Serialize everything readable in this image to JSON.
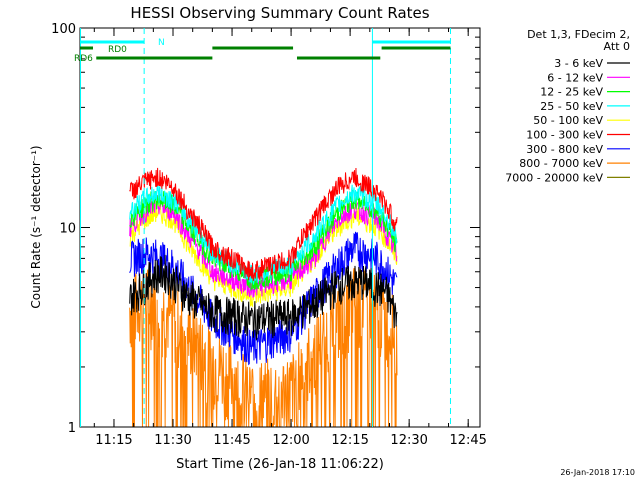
{
  "chart_data": {
    "type": "line",
    "title": "HESSI Observing Summary Count Rates",
    "xlabel": "Start Time (26-Jan-18 11:06:22)",
    "ylabel": "Count Rate (s⁻¹ detector⁻¹)",
    "y_scale": "log",
    "ylim": [
      1,
      100
    ],
    "xlim": [
      "11:06:22",
      "12:48:00"
    ],
    "x_ticks": [
      "11:15",
      "11:30",
      "11:45",
      "12:00",
      "12:15",
      "12:30",
      "12:45"
    ],
    "y_ticks": [
      "1",
      "10",
      "100"
    ],
    "grid": false,
    "legend_position": "right",
    "legend_header": [
      "Det 1,3, FDecim 2,",
      "Att 0"
    ],
    "date_stamp": "26-Jan-2018 17:10",
    "series": [
      {
        "name": "3 - 6 keV",
        "color": "#000000",
        "x": [
          "11:19",
          "11:22",
          "11:25",
          "11:28",
          "11:31",
          "11:34",
          "11:40",
          "11:50",
          "12:00",
          "12:06",
          "12:12",
          "12:18",
          "12:24",
          "12:27"
        ],
        "values": [
          4.5,
          5.0,
          5.8,
          6.0,
          5.2,
          4.5,
          3.8,
          3.5,
          3.6,
          4.2,
          5.2,
          5.4,
          4.8,
          3.5
        ]
      },
      {
        "name": "6 - 12 keV",
        "color": "#ff00ff",
        "x": [
          "11:19",
          "11:23",
          "11:26",
          "11:30",
          "11:34",
          "11:40",
          "11:50",
          "12:00",
          "12:06",
          "12:12",
          "12:16",
          "12:22",
          "12:27"
        ],
        "values": [
          10,
          12,
          13,
          12,
          9,
          6,
          5.0,
          5.5,
          7,
          11,
          12.5,
          11,
          7
        ]
      },
      {
        "name": "12 - 25 keV",
        "color": "#00ff00",
        "x": [
          "11:19",
          "11:23",
          "11:26",
          "11:30",
          "11:34",
          "11:40",
          "11:50",
          "12:00",
          "12:06",
          "12:12",
          "12:16",
          "12:22",
          "12:27"
        ],
        "values": [
          11,
          13,
          14,
          13,
          10,
          7,
          5.5,
          6,
          8,
          12,
          14,
          12,
          8
        ]
      },
      {
        "name": "25 - 50 keV",
        "color": "#00ffff",
        "x": [
          "11:19",
          "11:23",
          "11:26",
          "11:30",
          "11:34",
          "11:40",
          "11:50",
          "12:00",
          "12:06",
          "12:12",
          "12:16",
          "12:22",
          "12:27"
        ],
        "values": [
          12,
          14,
          15,
          14,
          11,
          7.5,
          5.8,
          6.5,
          9,
          13,
          15,
          13,
          9
        ]
      },
      {
        "name": "50 - 100 keV",
        "color": "#ffff00",
        "x": [
          "11:19",
          "11:23",
          "11:26",
          "11:30",
          "11:34",
          "11:40",
          "11:50",
          "12:00",
          "12:06",
          "12:12",
          "12:16",
          "12:22",
          "12:27"
        ],
        "values": [
          9,
          11,
          12,
          11,
          8,
          5.5,
          4.5,
          5,
          7,
          10,
          11.5,
          10,
          7
        ]
      },
      {
        "name": "100 - 300 keV",
        "color": "#ff0000",
        "x": [
          "11:19",
          "11:23",
          "11:26",
          "11:30",
          "11:34",
          "11:40",
          "11:50",
          "12:00",
          "12:06",
          "12:12",
          "12:16",
          "12:22",
          "12:27"
        ],
        "values": [
          15,
          17,
          18,
          16,
          12,
          8,
          6,
          7,
          11,
          16,
          18,
          15,
          10
        ]
      },
      {
        "name": "300 - 800 keV",
        "color": "#0000ff",
        "x": [
          "11:19",
          "11:23",
          "11:26",
          "11:30",
          "11:34",
          "11:40",
          "11:50",
          "12:00",
          "12:06",
          "12:12",
          "12:16",
          "12:22",
          "12:27"
        ],
        "values": [
          7,
          7.5,
          7.2,
          6.5,
          5,
          3.5,
          2.5,
          3,
          4.5,
          6.5,
          8,
          7,
          5
        ]
      },
      {
        "name": "800 - 7000 keV",
        "color": "#ff8000",
        "x": [
          "11:19",
          "11:23",
          "11:26",
          "11:30",
          "11:34",
          "11:40",
          "11:50",
          "12:00",
          "12:06",
          "12:12",
          "12:16",
          "12:22",
          "12:27"
        ],
        "values": [
          4,
          4.5,
          4.2,
          3.6,
          3,
          2.2,
          1.5,
          1.6,
          2.5,
          3.5,
          4.5,
          4,
          3
        ]
      },
      {
        "name": "7000 - 20000 keV",
        "color": "#808000",
        "x": [],
        "values": []
      }
    ],
    "annotations": {
      "flags": [
        {
          "label": "N",
          "color": "#00ffff",
          "segments": [
            [
              "11:06:22",
              "11:22:40"
            ],
            [
              "12:20:40",
              "12:40:30"
            ]
          ]
        },
        {
          "label": "RD0",
          "color": "#008000",
          "segments": [
            [
              "11:06:22",
              "11:09:40"
            ],
            [
              "11:40:00",
              "12:00:30"
            ],
            [
              "12:23:00",
              "12:40:30"
            ]
          ]
        },
        {
          "label": "RD6",
          "color": "#008000",
          "segments": [
            [
              "11:10:30",
              "11:40:00"
            ],
            [
              "12:01:30",
              "12:22:40"
            ]
          ]
        }
      ],
      "vlines_solid": [
        {
          "x": "11:06:30",
          "color": "#00ffff"
        },
        {
          "x": "12:20:40",
          "color": "#00ffff"
        }
      ],
      "vlines_dashed": [
        {
          "x": "11:22:40",
          "color": "#00ffff"
        },
        {
          "x": "12:40:30",
          "color": "#00ffff"
        }
      ]
    }
  }
}
